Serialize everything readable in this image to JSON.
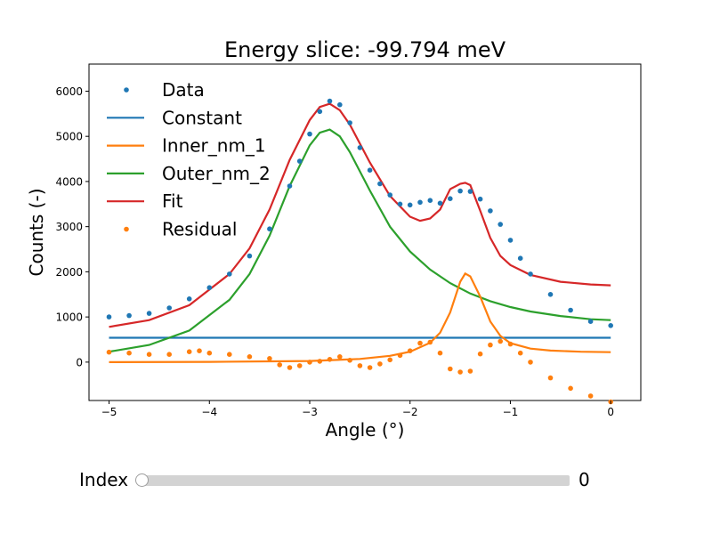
{
  "chart_data": {
    "type": "line",
    "title": "Energy slice: -99.794 meV",
    "xlabel": "Angle (°)",
    "ylabel": "Counts (-)",
    "xlim": [
      -5.2,
      0.3
    ],
    "ylim": [
      -850,
      6600
    ],
    "x_ticks": [
      -5,
      -4,
      -3,
      -2,
      -1,
      0
    ],
    "y_ticks": [
      0,
      1000,
      2000,
      3000,
      4000,
      5000,
      6000
    ],
    "grid": false,
    "legend_position": "upper-left",
    "colors": {
      "Data": "#1f77b4",
      "Constant": "#1f77b4",
      "Inner_nm_1": "#ff7f0e",
      "Outer_nm_2": "#2ca02c",
      "Fit": "#d62728",
      "Residual": "#ff7f0e"
    },
    "series": [
      {
        "name": "Data",
        "style": "scatter",
        "x": [
          -5.0,
          -4.8,
          -4.6,
          -4.4,
          -4.2,
          -4.0,
          -3.8,
          -3.6,
          -3.4,
          -3.2,
          -3.1,
          -3.0,
          -2.9,
          -2.8,
          -2.7,
          -2.6,
          -2.5,
          -2.4,
          -2.3,
          -2.2,
          -2.1,
          -2.0,
          -1.9,
          -1.8,
          -1.7,
          -1.6,
          -1.5,
          -1.4,
          -1.3,
          -1.2,
          -1.1,
          -1.0,
          -0.9,
          -0.8,
          -0.6,
          -0.4,
          -0.2,
          0.0
        ],
        "y": [
          1000,
          1030,
          1080,
          1200,
          1400,
          1650,
          1950,
          2350,
          2950,
          3900,
          4450,
          5050,
          5550,
          5780,
          5700,
          5300,
          4750,
          4250,
          3950,
          3700,
          3500,
          3480,
          3540,
          3580,
          3520,
          3620,
          3790,
          3780,
          3610,
          3350,
          3050,
          2700,
          2300,
          1950,
          1500,
          1150,
          900,
          810
        ]
      },
      {
        "name": "Constant",
        "style": "line",
        "x": [
          -5.0,
          0.0
        ],
        "y": [
          540,
          540
        ]
      },
      {
        "name": "Inner_nm_1",
        "style": "line",
        "x": [
          -5.0,
          -4.0,
          -3.0,
          -2.5,
          -2.2,
          -2.0,
          -1.8,
          -1.7,
          -1.6,
          -1.5,
          -1.45,
          -1.4,
          -1.3,
          -1.2,
          -1.1,
          -1.0,
          -0.8,
          -0.6,
          -0.3,
          0.0
        ],
        "y": [
          0,
          5,
          25,
          70,
          140,
          230,
          430,
          650,
          1100,
          1780,
          1960,
          1900,
          1450,
          900,
          580,
          420,
          300,
          255,
          230,
          220
        ]
      },
      {
        "name": "Outer_nm_2",
        "style": "line",
        "x": [
          -5.0,
          -4.6,
          -4.2,
          -3.8,
          -3.6,
          -3.4,
          -3.2,
          -3.0,
          -2.9,
          -2.8,
          -2.7,
          -2.6,
          -2.4,
          -2.2,
          -2.0,
          -1.8,
          -1.6,
          -1.4,
          -1.2,
          -1.0,
          -0.8,
          -0.5,
          -0.2,
          0.0
        ],
        "y": [
          230,
          380,
          700,
          1380,
          1950,
          2800,
          3900,
          4800,
          5080,
          5150,
          5000,
          4650,
          3800,
          3000,
          2450,
          2050,
          1750,
          1520,
          1350,
          1220,
          1120,
          1020,
          950,
          930
        ]
      },
      {
        "name": "Fit",
        "style": "line",
        "x": [
          -5.0,
          -4.6,
          -4.2,
          -3.8,
          -3.6,
          -3.4,
          -3.2,
          -3.0,
          -2.9,
          -2.8,
          -2.7,
          -2.6,
          -2.4,
          -2.2,
          -2.0,
          -1.9,
          -1.8,
          -1.7,
          -1.6,
          -1.5,
          -1.45,
          -1.4,
          -1.3,
          -1.2,
          -1.1,
          -1.0,
          -0.8,
          -0.5,
          -0.2,
          0.0
        ],
        "y": [
          780,
          930,
          1260,
          1950,
          2520,
          3380,
          4480,
          5360,
          5650,
          5720,
          5580,
          5260,
          4420,
          3680,
          3220,
          3130,
          3180,
          3380,
          3830,
          3950,
          3970,
          3920,
          3350,
          2750,
          2350,
          2150,
          1930,
          1780,
          1720,
          1700
        ]
      },
      {
        "name": "Residual",
        "style": "scatter",
        "x": [
          -5.0,
          -4.8,
          -4.6,
          -4.4,
          -4.2,
          -4.1,
          -4.0,
          -3.8,
          -3.6,
          -3.4,
          -3.3,
          -3.2,
          -3.1,
          -3.0,
          -2.9,
          -2.8,
          -2.7,
          -2.6,
          -2.5,
          -2.4,
          -2.3,
          -2.2,
          -2.1,
          -2.0,
          -1.9,
          -1.8,
          -1.7,
          -1.6,
          -1.5,
          -1.4,
          -1.3,
          -1.2,
          -1.1,
          -1.0,
          -0.9,
          -0.8,
          -0.6,
          -0.4,
          -0.2,
          0.0
        ],
        "y": [
          220,
          200,
          170,
          170,
          230,
          250,
          200,
          170,
          120,
          80,
          -60,
          -120,
          -80,
          0,
          20,
          60,
          120,
          40,
          -80,
          -120,
          -40,
          50,
          150,
          250,
          420,
          440,
          200,
          -150,
          -220,
          -200,
          180,
          380,
          460,
          400,
          200,
          0,
          -350,
          -580,
          -750,
          -880
        ]
      }
    ]
  },
  "slider": {
    "label": "Index",
    "value": "0",
    "fraction": 0
  }
}
